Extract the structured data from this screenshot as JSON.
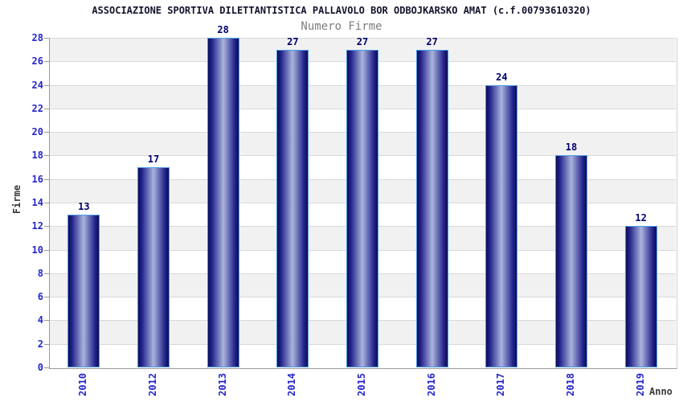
{
  "chart_data": {
    "type": "bar",
    "title": "ASSOCIAZIONE SPORTIVA DILETTANTISTICA PALLAVOLO BOR ODBOJKARSKO AMAT (c.f.00793610320)",
    "subtitle": "Numero Firme",
    "categories": [
      "2010",
      "2012",
      "2013",
      "2014",
      "2015",
      "2016",
      "2017",
      "2018",
      "2019"
    ],
    "values": [
      13,
      17,
      28,
      27,
      27,
      27,
      24,
      18,
      12
    ],
    "xlabel": "Anno",
    "ylabel": "Firme",
    "ylim": [
      0,
      28
    ],
    "ytick_step": 2,
    "yticks": [
      0,
      2,
      4,
      6,
      8,
      10,
      12,
      14,
      16,
      18,
      20,
      22,
      24,
      26,
      28
    ],
    "grid": "horizontal-bands-alternating",
    "legend_position": "none",
    "colors": {
      "title": "#14142e",
      "subtitle": "#7d7d7d",
      "tick_label_blue": "#2525cd",
      "value_label_navy": "#00006b",
      "axis_label_gray": "#3a3a3a",
      "bar_edge": "#0e0e52",
      "bar_inner": "#22228c",
      "bar_mid": "#aab4dc",
      "bar_border": "#4d9ae8",
      "band_gray": "#f1f1f1",
      "band_white": "#ffffff",
      "grid_line": "#d9d9d9",
      "axis_line": "#9a9a9a",
      "tick_mark": "#9a9a9a"
    }
  }
}
